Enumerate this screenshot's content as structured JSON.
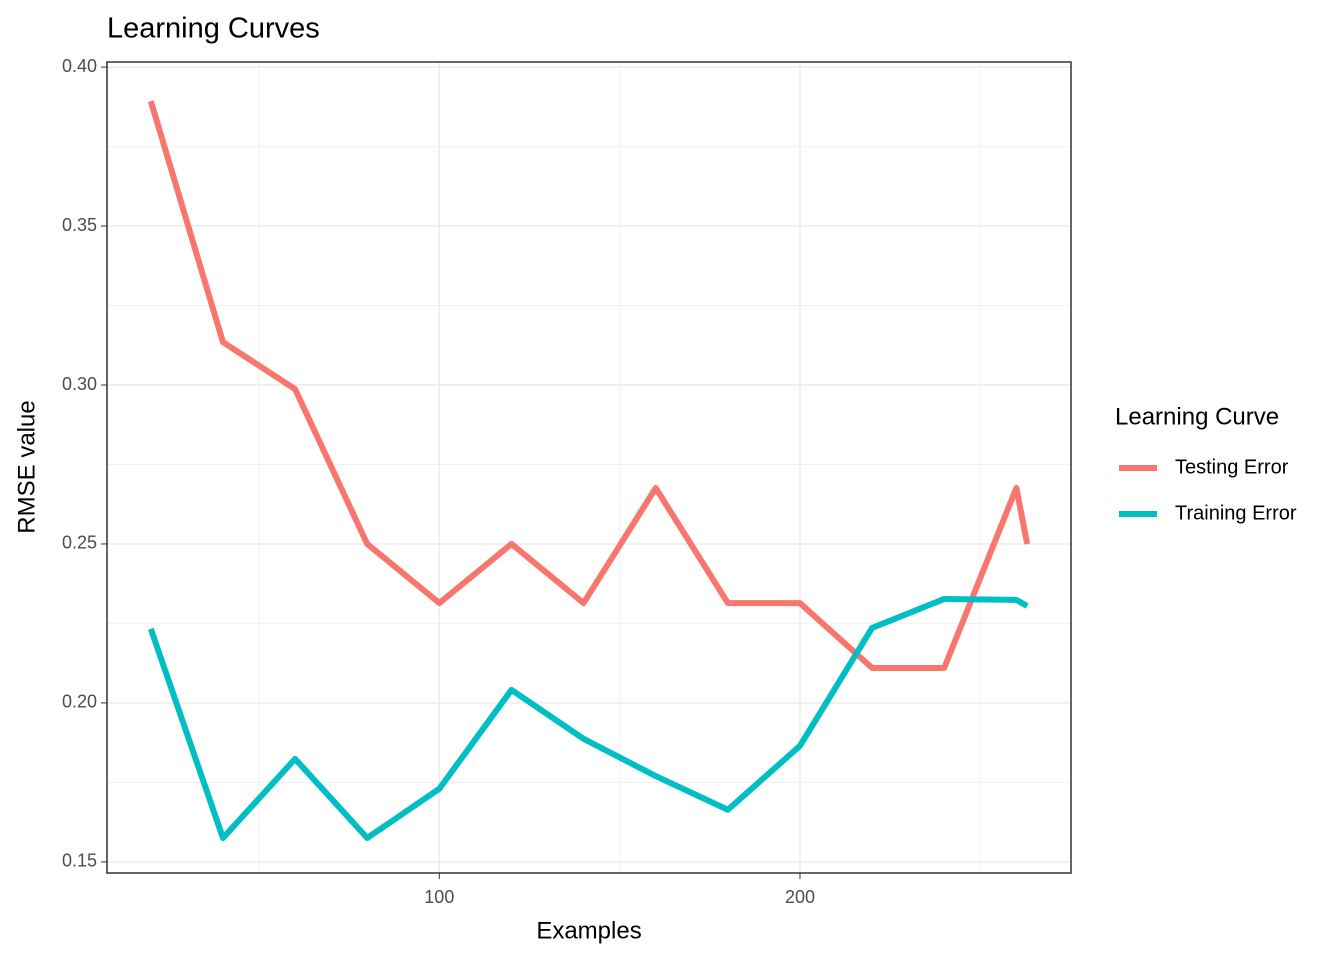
{
  "chart_data": {
    "type": "line",
    "title": "Learning Curves",
    "x_label": "Examples",
    "y_label": "RMSE value",
    "x": [
      20,
      40,
      60,
      80,
      100,
      120,
      140,
      160,
      180,
      200,
      220,
      240,
      260,
      263
    ],
    "series": [
      {
        "name": "Testing Error",
        "color": "#f8766d",
        "values": [
          0.3893,
          0.3135,
          0.2987,
          0.25,
          0.2314,
          0.25,
          0.2314,
          0.2676,
          0.2314,
          0.2314,
          0.211,
          0.211,
          0.2676,
          0.25
        ]
      },
      {
        "name": "Training Error",
        "color": "#00bfc4",
        "values": [
          0.2233,
          0.1575,
          0.1824,
          0.1575,
          0.173,
          0.2041,
          0.1887,
          0.177,
          0.1664,
          0.1865,
          0.2236,
          0.2327,
          0.2324,
          0.2305
        ]
      }
    ],
    "xlim": [
      7.85,
      275.15
    ],
    "ylim": [
      0.1465,
      0.4016
    ],
    "xticks": [
      100,
      200
    ],
    "x_minor_ticks": [
      50,
      150,
      250
    ],
    "yticks": [
      {
        "value": 0.15,
        "label": "0.15"
      },
      {
        "value": 0.2,
        "label": "0.20"
      },
      0.25,
      {
        "value": 0.3,
        "label": "0.30"
      },
      0.35,
      {
        "value": 0.4,
        "label": "0.40"
      }
    ],
    "y_minor_ticks": [
      0.175,
      0.225,
      0.275,
      0.325,
      0.375
    ],
    "grid": true,
    "legend_title": "Learning Curve",
    "legend_position": "right"
  }
}
